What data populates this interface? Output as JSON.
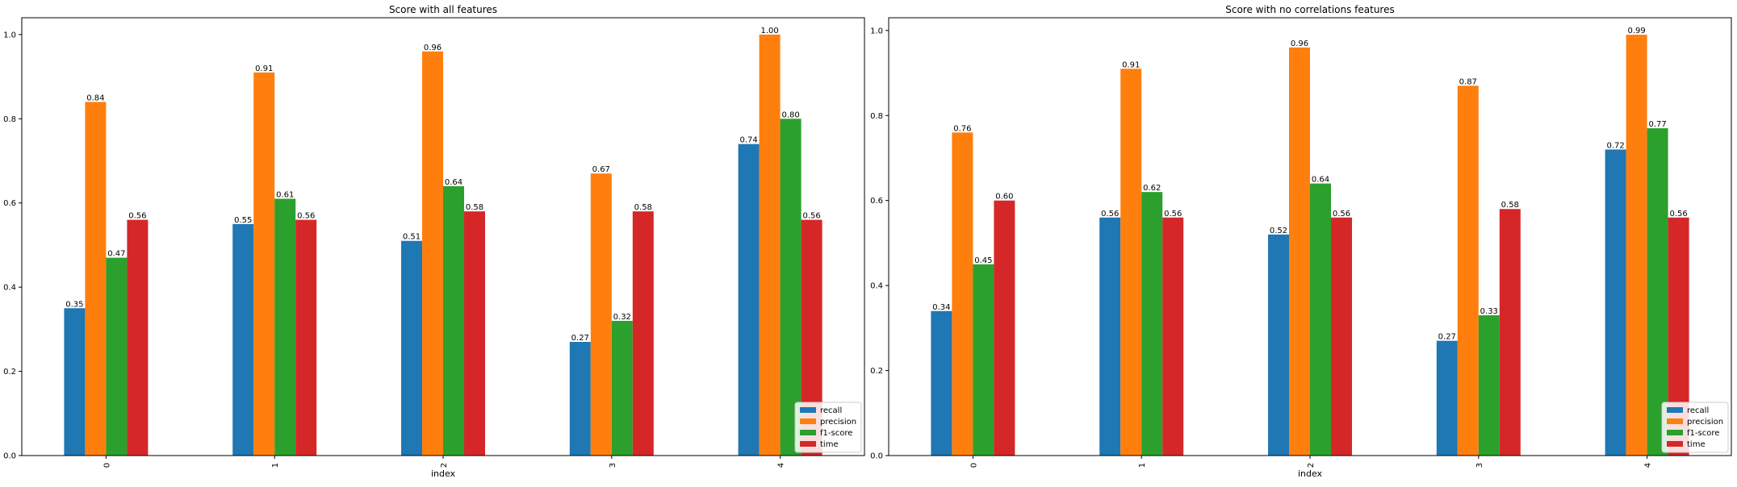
{
  "chart_data": [
    {
      "type": "bar",
      "title": "Score with all features",
      "xlabel": "index",
      "ylabel": "",
      "categories": [
        "0",
        "1",
        "2",
        "3",
        "4"
      ],
      "ylim": [
        0,
        1.04
      ],
      "yticks": [
        "0.0",
        "0.2",
        "0.4",
        "0.6",
        "0.8",
        "1.0"
      ],
      "legend_position": "lower-right",
      "series": [
        {
          "name": "recall",
          "color": "#1f77b4",
          "values": [
            0.35,
            0.55,
            0.51,
            0.27,
            0.74
          ]
        },
        {
          "name": "precision",
          "color": "#ff7f0e",
          "values": [
            0.84,
            0.91,
            0.96,
            0.67,
            1.0
          ]
        },
        {
          "name": "f1-score",
          "color": "#2ca02c",
          "values": [
            0.47,
            0.61,
            0.64,
            0.32,
            0.8
          ]
        },
        {
          "name": "time",
          "color": "#d62728",
          "values": [
            0.56,
            0.56,
            0.58,
            0.58,
            0.56
          ]
        }
      ]
    },
    {
      "type": "bar",
      "title": "Score with no correlations features",
      "xlabel": "index",
      "ylabel": "",
      "categories": [
        "0",
        "1",
        "2",
        "3",
        "4"
      ],
      "ylim": [
        0,
        1.03
      ],
      "yticks": [
        "0.0",
        "0.2",
        "0.4",
        "0.6",
        "0.8",
        "1.0"
      ],
      "legend_position": "lower-right",
      "series": [
        {
          "name": "recall",
          "color": "#1f77b4",
          "values": [
            0.34,
            0.56,
            0.52,
            0.27,
            0.72
          ]
        },
        {
          "name": "precision",
          "color": "#ff7f0e",
          "values": [
            0.76,
            0.91,
            0.96,
            0.87,
            0.99
          ]
        },
        {
          "name": "f1-score",
          "color": "#2ca02c",
          "values": [
            0.45,
            0.62,
            0.64,
            0.33,
            0.77
          ]
        },
        {
          "name": "time",
          "color": "#d62728",
          "values": [
            0.6,
            0.56,
            0.56,
            0.58,
            0.56
          ]
        }
      ]
    }
  ]
}
